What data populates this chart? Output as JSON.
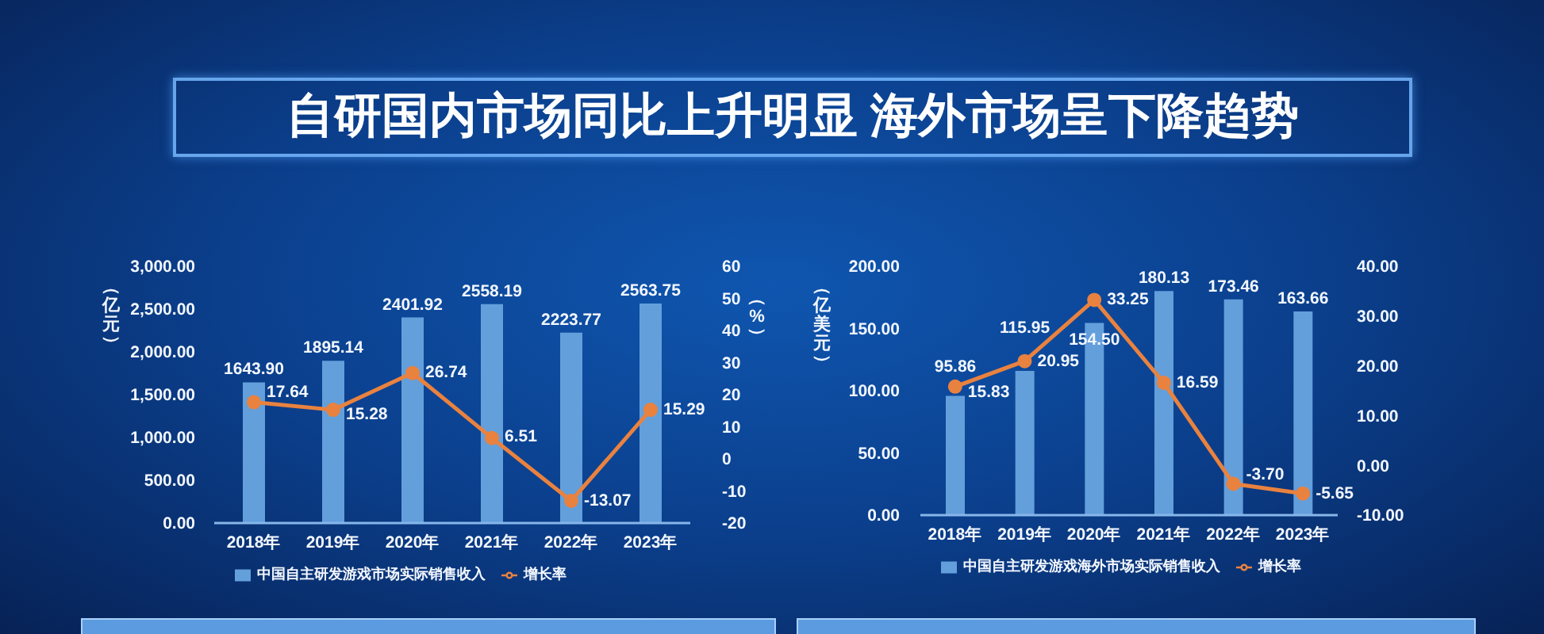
{
  "chart_data": [
    {
      "type": "bar",
      "title": "自研国内市场同比上升明显 海外市场呈下降趋势",
      "ylabel": "（亿元）",
      "y2label": "（%）",
      "categories": [
        "2018年",
        "2019年",
        "2020年",
        "2021年",
        "2022年",
        "2023年"
      ],
      "series": [
        {
          "name": "中国自主研发游戏市场实际销售收入",
          "color": "#639fdb",
          "values": [
            1643.9,
            1895.14,
            2401.92,
            2558.19,
            2223.77,
            2563.75
          ],
          "value_labels": [
            "1643.90",
            "1895.14",
            "2401.92",
            "2558.19",
            "2223.77",
            "2563.75"
          ]
        },
        {
          "name": "增长率",
          "type": "line",
          "axis": "y2",
          "color": "#e9823f",
          "values": [
            17.64,
            15.28,
            26.74,
            6.51,
            -13.07,
            15.29
          ],
          "value_labels": [
            "17.64",
            "15.28",
            "26.74",
            "6.51",
            "-13.07",
            "15.29"
          ]
        }
      ],
      "ylim": [
        0,
        3000
      ],
      "yticks": [
        {
          "value": 0,
          "label": "0.00"
        },
        {
          "value": 500,
          "label": "500.00"
        },
        {
          "value": 1000,
          "label": "1,000.00"
        },
        {
          "value": 1500,
          "label": "1,500.00"
        },
        {
          "value": 2000,
          "label": "2,000.00"
        },
        {
          "value": 2500,
          "label": "2,500.00"
        },
        {
          "value": 3000,
          "label": "3,000.00"
        }
      ],
      "y2lim": [
        -20,
        60
      ],
      "y2ticks": [
        -20,
        -10,
        0,
        10,
        20,
        30,
        40,
        50,
        60
      ],
      "legend": "bottom",
      "marker": "circle"
    },
    {
      "type": "bar",
      "ylabel": "（亿美元）",
      "categories": [
        "2018年",
        "2019年",
        "2020年",
        "2021年",
        "2022年",
        "2023年"
      ],
      "series": [
        {
          "name": "中国自主研发游戏海外市场实际销售收入",
          "color": "#639fdb",
          "values": [
            95.86,
            115.95,
            154.5,
            180.13,
            173.46,
            163.66
          ],
          "value_labels": [
            "95.86",
            "115.95",
            "154.50",
            "180.13",
            "173.46",
            "163.66"
          ]
        },
        {
          "name": "增长率",
          "type": "line",
          "axis": "y2",
          "color": "#e9823f",
          "values": [
            15.83,
            20.95,
            33.25,
            16.59,
            -3.7,
            -5.65
          ],
          "value_labels": [
            "15.83",
            "20.95",
            "33.25",
            "16.59",
            "-3.70",
            "-5.65"
          ]
        }
      ],
      "ylim": [
        0,
        200
      ],
      "yticks": [
        {
          "value": 0,
          "label": "0.00"
        },
        {
          "value": 50,
          "label": "50.00"
        },
        {
          "value": 100,
          "label": "100.00"
        },
        {
          "value": 150,
          "label": "150.00"
        },
        {
          "value": 200,
          "label": "200.00"
        }
      ],
      "y2lim": [
        -10,
        40
      ],
      "y2ticks": [
        {
          "value": -10,
          "label": "-10.00"
        },
        {
          "value": 0,
          "label": "0.00"
        },
        {
          "value": 10,
          "label": "10.00"
        },
        {
          "value": 20,
          "label": "20.00"
        },
        {
          "value": 30,
          "label": "30.00"
        },
        {
          "value": 40,
          "label": "40.00"
        }
      ],
      "legend": "bottom",
      "marker": "circle"
    }
  ]
}
